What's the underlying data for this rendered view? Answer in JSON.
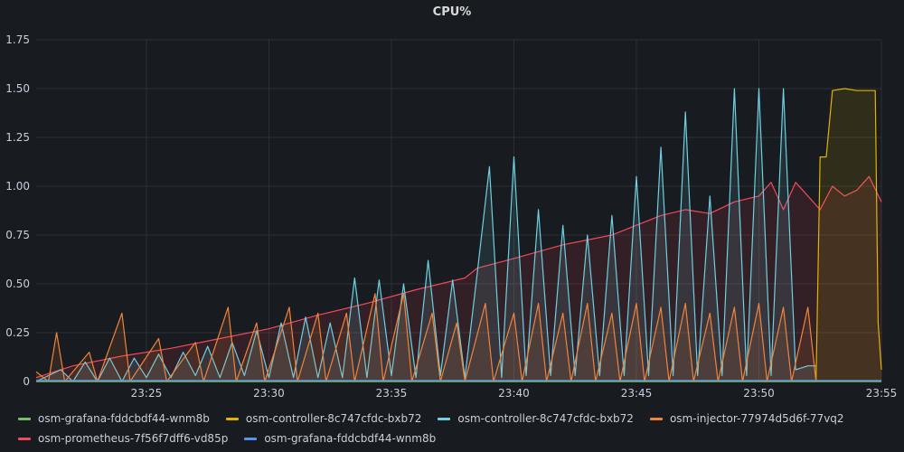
{
  "panel": {
    "title": "CPU%"
  },
  "chart_data": {
    "type": "line",
    "title": "CPU%",
    "xlabel": "",
    "ylabel": "",
    "ylim": [
      0,
      1.75
    ],
    "yticks": [
      "0",
      "0.25",
      "0.50",
      "0.75",
      "1.00",
      "1.25",
      "1.50",
      "1.75"
    ],
    "xlim": [
      "23:20:30",
      "23:55:00"
    ],
    "xticks": [
      "23:25",
      "23:30",
      "23:35",
      "23:40",
      "23:45",
      "23:50",
      "23:55"
    ],
    "grid": true,
    "legend_position": "bottom",
    "series": [
      {
        "name": "osm-grafana-fddcbdf44-wnm8b",
        "color": "#73bf69",
        "fill": false,
        "points": [
          [
            "23:20:30",
            0.0
          ],
          [
            "23:55:00",
            0.0
          ]
        ]
      },
      {
        "name": "osm-controller-8c747cfdc-bxb72",
        "color": "#e0b400",
        "fill": true,
        "points": [
          [
            "23:20:30",
            0.0
          ],
          [
            "23:52:20",
            0.0
          ],
          [
            "23:52:30",
            1.15
          ],
          [
            "23:52:45",
            1.15
          ],
          [
            "23:53:00",
            1.49
          ],
          [
            "23:53:30",
            1.5
          ],
          [
            "23:54:00",
            1.49
          ],
          [
            "23:54:30",
            1.49
          ],
          [
            "23:54:45",
            1.49
          ],
          [
            "23:54:52",
            0.3
          ],
          [
            "23:55:00",
            0.06
          ]
        ]
      },
      {
        "name": "osm-controller-8c747cfdc-bxb72",
        "color": "#6ed0e0",
        "fill": true,
        "points": [
          [
            "23:20:30",
            0.0
          ],
          [
            "23:21:30",
            0.06
          ],
          [
            "23:22:00",
            0.0
          ],
          [
            "23:22:30",
            0.1
          ],
          [
            "23:23:00",
            0.0
          ],
          [
            "23:23:30",
            0.12
          ],
          [
            "23:24:00",
            0.0
          ],
          [
            "23:24:30",
            0.12
          ],
          [
            "23:25:00",
            0.02
          ],
          [
            "23:25:30",
            0.14
          ],
          [
            "23:26:00",
            0.02
          ],
          [
            "23:26:30",
            0.15
          ],
          [
            "23:27:00",
            0.03
          ],
          [
            "23:27:30",
            0.18
          ],
          [
            "23:28:00",
            0.02
          ],
          [
            "23:28:30",
            0.2
          ],
          [
            "23:29:00",
            0.03
          ],
          [
            "23:29:30",
            0.26
          ],
          [
            "23:30:00",
            0.02
          ],
          [
            "23:30:30",
            0.3
          ],
          [
            "23:31:00",
            0.02
          ],
          [
            "23:31:30",
            0.33
          ],
          [
            "23:32:00",
            0.02
          ],
          [
            "23:32:30",
            0.3
          ],
          [
            "23:33:00",
            0.02
          ],
          [
            "23:33:30",
            0.53
          ],
          [
            "23:34:00",
            0.02
          ],
          [
            "23:34:30",
            0.52
          ],
          [
            "23:35:00",
            0.03
          ],
          [
            "23:35:30",
            0.5
          ],
          [
            "23:36:00",
            0.02
          ],
          [
            "23:36:30",
            0.62
          ],
          [
            "23:37:00",
            0.03
          ],
          [
            "23:37:30",
            0.52
          ],
          [
            "23:38:00",
            0.02
          ],
          [
            "23:38:30",
            0.55
          ],
          [
            "23:39:00",
            1.1
          ],
          [
            "23:39:30",
            0.02
          ],
          [
            "23:40:00",
            1.15
          ],
          [
            "23:40:30",
            0.03
          ],
          [
            "23:41:00",
            0.88
          ],
          [
            "23:41:30",
            0.03
          ],
          [
            "23:42:00",
            0.8
          ],
          [
            "23:42:30",
            0.03
          ],
          [
            "23:43:00",
            0.75
          ],
          [
            "23:43:30",
            0.03
          ],
          [
            "23:44:00",
            0.85
          ],
          [
            "23:44:30",
            0.03
          ],
          [
            "23:45:00",
            1.05
          ],
          [
            "23:45:30",
            0.03
          ],
          [
            "23:46:00",
            1.2
          ],
          [
            "23:46:30",
            0.03
          ],
          [
            "23:47:00",
            1.38
          ],
          [
            "23:47:30",
            0.03
          ],
          [
            "23:48:00",
            0.95
          ],
          [
            "23:48:30",
            0.03
          ],
          [
            "23:49:00",
            1.5
          ],
          [
            "23:49:30",
            0.03
          ],
          [
            "23:50:00",
            1.5
          ],
          [
            "23:50:30",
            0.03
          ],
          [
            "23:51:00",
            1.5
          ],
          [
            "23:51:30",
            0.06
          ],
          [
            "23:52:00",
            0.08
          ],
          [
            "23:52:20",
            0.08
          ]
        ]
      },
      {
        "name": "osm-injector-77974d5d6f-77vq2",
        "color": "#ef843c",
        "fill": true,
        "points": [
          [
            "23:20:30",
            0.05
          ],
          [
            "23:21:00",
            0.0
          ],
          [
            "23:21:20",
            0.25
          ],
          [
            "23:21:40",
            0.0
          ],
          [
            "23:22:40",
            0.15
          ],
          [
            "23:23:00",
            0.0
          ],
          [
            "23:24:00",
            0.35
          ],
          [
            "23:24:20",
            0.0
          ],
          [
            "23:25:30",
            0.22
          ],
          [
            "23:25:50",
            0.0
          ],
          [
            "23:27:00",
            0.2
          ],
          [
            "23:27:20",
            0.0
          ],
          [
            "23:28:20",
            0.38
          ],
          [
            "23:28:40",
            0.0
          ],
          [
            "23:29:30",
            0.3
          ],
          [
            "23:29:50",
            0.0
          ],
          [
            "23:30:50",
            0.38
          ],
          [
            "23:31:10",
            0.0
          ],
          [
            "23:32:00",
            0.35
          ],
          [
            "23:32:20",
            0.0
          ],
          [
            "23:33:10",
            0.35
          ],
          [
            "23:33:30",
            0.0
          ],
          [
            "23:34:20",
            0.45
          ],
          [
            "23:34:40",
            0.0
          ],
          [
            "23:35:30",
            0.45
          ],
          [
            "23:35:50",
            0.0
          ],
          [
            "23:36:40",
            0.35
          ],
          [
            "23:37:00",
            0.0
          ],
          [
            "23:37:40",
            0.3
          ],
          [
            "23:38:00",
            0.0
          ],
          [
            "23:38:50",
            0.4
          ],
          [
            "23:39:10",
            0.0
          ],
          [
            "23:40:00",
            0.35
          ],
          [
            "23:40:20",
            0.0
          ],
          [
            "23:41:00",
            0.4
          ],
          [
            "23:41:20",
            0.0
          ],
          [
            "23:42:00",
            0.35
          ],
          [
            "23:42:20",
            0.0
          ],
          [
            "23:43:00",
            0.4
          ],
          [
            "23:43:20",
            0.0
          ],
          [
            "23:44:00",
            0.35
          ],
          [
            "23:44:20",
            0.0
          ],
          [
            "23:45:00",
            0.4
          ],
          [
            "23:45:20",
            0.0
          ],
          [
            "23:46:00",
            0.38
          ],
          [
            "23:46:20",
            0.0
          ],
          [
            "23:47:00",
            0.4
          ],
          [
            "23:47:20",
            0.0
          ],
          [
            "23:48:00",
            0.35
          ],
          [
            "23:48:20",
            0.0
          ],
          [
            "23:49:00",
            0.38
          ],
          [
            "23:49:20",
            0.0
          ],
          [
            "23:50:00",
            0.4
          ],
          [
            "23:50:20",
            0.0
          ],
          [
            "23:51:00",
            0.38
          ],
          [
            "23:51:20",
            0.0
          ],
          [
            "23:52:00",
            0.38
          ],
          [
            "23:52:20",
            0.0
          ],
          [
            "23:55:00",
            0.0
          ]
        ]
      },
      {
        "name": "osm-prometheus-7f56f7dff6-vd85p",
        "color": "#f2495c",
        "fill": true,
        "points": [
          [
            "23:20:30",
            0.02
          ],
          [
            "23:22:00",
            0.08
          ],
          [
            "23:24:00",
            0.13
          ],
          [
            "23:26:00",
            0.17
          ],
          [
            "23:28:00",
            0.22
          ],
          [
            "23:30:00",
            0.27
          ],
          [
            "23:32:00",
            0.34
          ],
          [
            "23:34:00",
            0.4
          ],
          [
            "23:36:00",
            0.47
          ],
          [
            "23:38:00",
            0.53
          ],
          [
            "23:38:30",
            0.58
          ],
          [
            "23:40:00",
            0.63
          ],
          [
            "23:42:00",
            0.7
          ],
          [
            "23:44:00",
            0.75
          ],
          [
            "23:45:00",
            0.8
          ],
          [
            "23:46:00",
            0.85
          ],
          [
            "23:47:00",
            0.88
          ],
          [
            "23:48:00",
            0.86
          ],
          [
            "23:49:00",
            0.92
          ],
          [
            "23:50:00",
            0.95
          ],
          [
            "23:50:30",
            1.02
          ],
          [
            "23:51:00",
            0.88
          ],
          [
            "23:51:30",
            1.02
          ],
          [
            "23:52:00",
            0.95
          ],
          [
            "23:52:30",
            0.88
          ],
          [
            "23:53:00",
            1.0
          ],
          [
            "23:53:30",
            0.95
          ],
          [
            "23:54:00",
            0.98
          ],
          [
            "23:54:30",
            1.05
          ],
          [
            "23:55:00",
            0.92
          ]
        ]
      },
      {
        "name": "osm-grafana-fddcbdf44-wnm8b",
        "color": "#5794f2",
        "fill": false,
        "points": [
          [
            "23:20:30",
            0.005
          ],
          [
            "23:55:00",
            0.005
          ]
        ]
      }
    ]
  }
}
